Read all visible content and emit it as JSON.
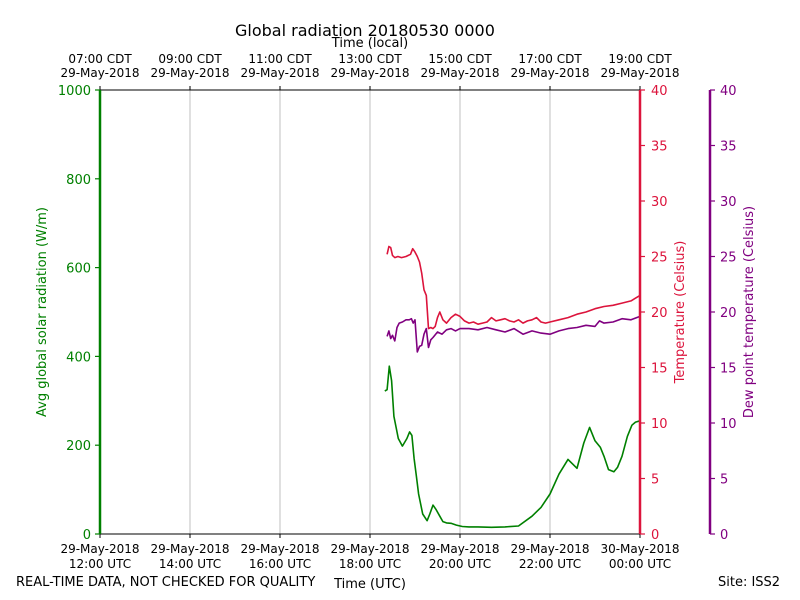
{
  "chart_data": {
    "type": "line",
    "title": "Global radiation 20180530 0000",
    "top_axis_label": "Time (local)",
    "xlabel": "Time (UTC)",
    "xlim_utc_hours": [
      12,
      24
    ],
    "utc_ticks": [
      {
        "hour": 12,
        "line1": "29-May-2018",
        "line2": "12:00 UTC"
      },
      {
        "hour": 14,
        "line1": "29-May-2018",
        "line2": "14:00 UTC"
      },
      {
        "hour": 16,
        "line1": "29-May-2018",
        "line2": "16:00 UTC"
      },
      {
        "hour": 18,
        "line1": "29-May-2018",
        "line2": "18:00 UTC"
      },
      {
        "hour": 20,
        "line1": "29-May-2018",
        "line2": "20:00 UTC"
      },
      {
        "hour": 22,
        "line1": "29-May-2018",
        "line2": "22:00 UTC"
      },
      {
        "hour": 24,
        "line1": "30-May-2018",
        "line2": "00:00 UTC"
      }
    ],
    "local_ticks": [
      {
        "hour": 12,
        "line1": "07:00 CDT",
        "line2": "29-May-2018"
      },
      {
        "hour": 14,
        "line1": "09:00 CDT",
        "line2": "29-May-2018"
      },
      {
        "hour": 16,
        "line1": "11:00 CDT",
        "line2": "29-May-2018"
      },
      {
        "hour": 18,
        "line1": "13:00 CDT",
        "line2": "29-May-2018"
      },
      {
        "hour": 20,
        "line1": "15:00 CDT",
        "line2": "29-May-2018"
      },
      {
        "hour": 22,
        "line1": "17:00 CDT",
        "line2": "29-May-2018"
      },
      {
        "hour": 24,
        "line1": "19:00 CDT",
        "line2": "29-May-2018"
      }
    ],
    "axes": {
      "radiation": {
        "label": "Avg global solar radiation (W/m)",
        "ylim": [
          0,
          1000
        ],
        "ticks": [
          0,
          200,
          400,
          600,
          800,
          1000
        ],
        "color": "#008000"
      },
      "temperature": {
        "label": "Temperature (Celsius)",
        "ylim": [
          0,
          40
        ],
        "ticks": [
          0,
          5,
          10,
          15,
          20,
          25,
          30,
          35,
          40
        ],
        "color": "#dc143c"
      },
      "dewpoint": {
        "label": "Dew point temperature (Celsius)",
        "ylim": [
          0,
          40
        ],
        "ticks": [
          0,
          5,
          10,
          15,
          20,
          25,
          30,
          35,
          40
        ],
        "color": "#800080"
      }
    },
    "series": [
      {
        "name": "Avg global solar radiation",
        "axis": "radiation",
        "color": "#008000",
        "x": [
          18.33,
          18.38,
          18.43,
          18.48,
          18.53,
          18.58,
          18.63,
          18.72,
          18.82,
          18.88,
          18.93,
          18.98,
          19.03,
          19.08,
          19.17,
          19.27,
          19.33,
          19.4,
          19.47,
          19.55,
          19.62,
          19.7,
          19.8,
          19.92,
          20.05,
          20.2,
          20.4,
          20.7,
          21.0,
          21.3,
          21.6,
          21.8,
          22.0,
          22.2,
          22.4,
          22.6,
          22.75,
          22.88,
          23.0,
          23.12,
          23.2,
          23.3,
          23.42,
          23.5,
          23.6,
          23.72,
          23.82,
          23.9,
          24.0
        ],
        "values": [
          322,
          325,
          378,
          345,
          265,
          240,
          215,
          198,
          215,
          230,
          222,
          170,
          130,
          90,
          45,
          30,
          45,
          65,
          55,
          40,
          28,
          25,
          24,
          20,
          17,
          16,
          16,
          15,
          16,
          18,
          40,
          60,
          90,
          135,
          168,
          148,
          205,
          240,
          210,
          195,
          175,
          145,
          140,
          150,
          175,
          220,
          245,
          252,
          255
        ]
      },
      {
        "name": "Temperature",
        "axis": "temperature",
        "color": "#dc143c",
        "x": [
          18.38,
          18.42,
          18.46,
          18.5,
          18.55,
          18.62,
          18.7,
          18.8,
          18.9,
          18.95,
          19.0,
          19.05,
          19.1,
          19.15,
          19.2,
          19.25,
          19.3,
          19.35,
          19.4,
          19.45,
          19.5,
          19.55,
          19.62,
          19.7,
          19.8,
          19.9,
          20.0,
          20.1,
          20.2,
          20.3,
          20.4,
          20.5,
          20.6,
          20.7,
          20.8,
          20.9,
          21.0,
          21.1,
          21.2,
          21.3,
          21.4,
          21.5,
          21.6,
          21.7,
          21.8,
          21.9,
          22.0,
          22.2,
          22.4,
          22.6,
          22.8,
          23.0,
          23.2,
          23.4,
          23.6,
          23.8,
          24.0
        ],
        "values": [
          25.2,
          25.9,
          25.8,
          25.1,
          24.9,
          25.0,
          24.9,
          25.0,
          25.2,
          25.7,
          25.4,
          25.0,
          24.5,
          23.5,
          22.0,
          21.5,
          18.5,
          18.6,
          18.5,
          18.7,
          19.5,
          20.0,
          19.3,
          19.0,
          19.5,
          19.8,
          19.6,
          19.2,
          19.0,
          19.1,
          18.9,
          19.0,
          19.1,
          19.5,
          19.2,
          19.3,
          19.4,
          19.2,
          19.1,
          19.3,
          19.0,
          19.2,
          19.3,
          19.5,
          19.1,
          19.0,
          19.1,
          19.3,
          19.5,
          19.8,
          20.0,
          20.3,
          20.5,
          20.6,
          20.8,
          21.0,
          21.5
        ]
      },
      {
        "name": "Dew point temperature",
        "axis": "dewpoint",
        "color": "#800080",
        "x": [
          18.38,
          18.42,
          18.46,
          18.5,
          18.55,
          18.6,
          18.65,
          18.72,
          18.8,
          18.87,
          18.92,
          18.96,
          19.0,
          19.05,
          19.1,
          19.15,
          19.2,
          19.25,
          19.3,
          19.35,
          19.4,
          19.5,
          19.6,
          19.7,
          19.8,
          19.9,
          20.0,
          20.2,
          20.4,
          20.6,
          20.8,
          21.0,
          21.2,
          21.4,
          21.6,
          21.8,
          22.0,
          22.2,
          22.4,
          22.6,
          22.8,
          23.0,
          23.1,
          23.2,
          23.4,
          23.6,
          23.8,
          24.0
        ],
        "values": [
          17.8,
          18.3,
          17.6,
          17.9,
          17.4,
          18.6,
          19.0,
          19.1,
          19.3,
          19.3,
          19.4,
          19.0,
          19.3,
          16.4,
          16.9,
          17.0,
          18.0,
          18.5,
          16.8,
          17.5,
          17.7,
          18.2,
          18.0,
          18.4,
          18.5,
          18.3,
          18.5,
          18.5,
          18.4,
          18.6,
          18.4,
          18.2,
          18.5,
          18.0,
          18.3,
          18.1,
          18.0,
          18.3,
          18.5,
          18.6,
          18.8,
          18.7,
          19.2,
          19.0,
          19.1,
          19.4,
          19.3,
          19.6
        ]
      }
    ]
  },
  "footer": {
    "left_text": "REAL-TIME DATA, NOT CHECKED FOR QUALITY",
    "site_text": "Site: ISS2"
  }
}
